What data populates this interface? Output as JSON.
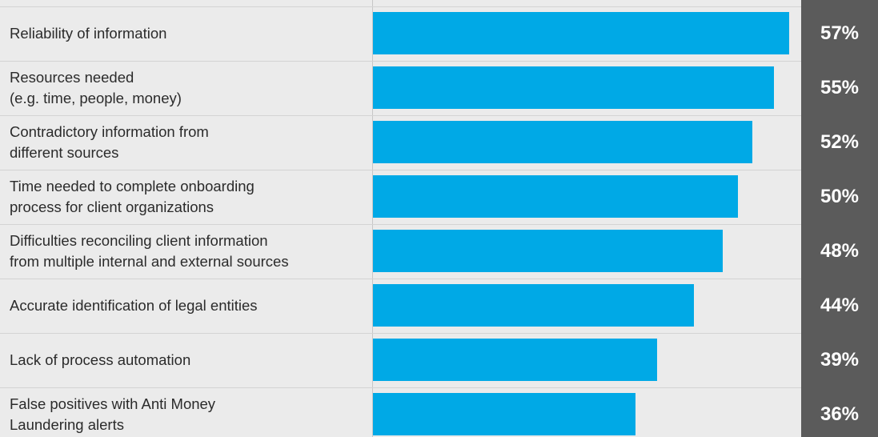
{
  "chart_data": {
    "type": "bar",
    "orientation": "horizontal",
    "categories": [
      "Reliability of information",
      "Resources needed\n(e.g. time, people, money)",
      "Contradictory information from\ndifferent sources",
      "Time needed to complete onboarding\nprocess for client organizations",
      "Difficulties reconciling client information\nfrom multiple internal and external sources",
      "Accurate identification of legal entities",
      "Lack of process automation",
      "False positives with Anti Money\nLaundering alerts"
    ],
    "values": [
      57,
      55,
      52,
      50,
      48,
      44,
      39,
      36
    ],
    "value_labels": [
      "57%",
      "55%",
      "52%",
      "50%",
      "48%",
      "44%",
      "39%",
      "36%"
    ],
    "unit": "%",
    "xlim": [
      0,
      58.7
    ],
    "grid": false,
    "legend": "none"
  },
  "colors": {
    "bar": "#00a9e6",
    "value_panel": "#5b5b5b",
    "background": "#ebebeb",
    "label_text": "#2b2b2b",
    "value_text": "#ffffff"
  }
}
